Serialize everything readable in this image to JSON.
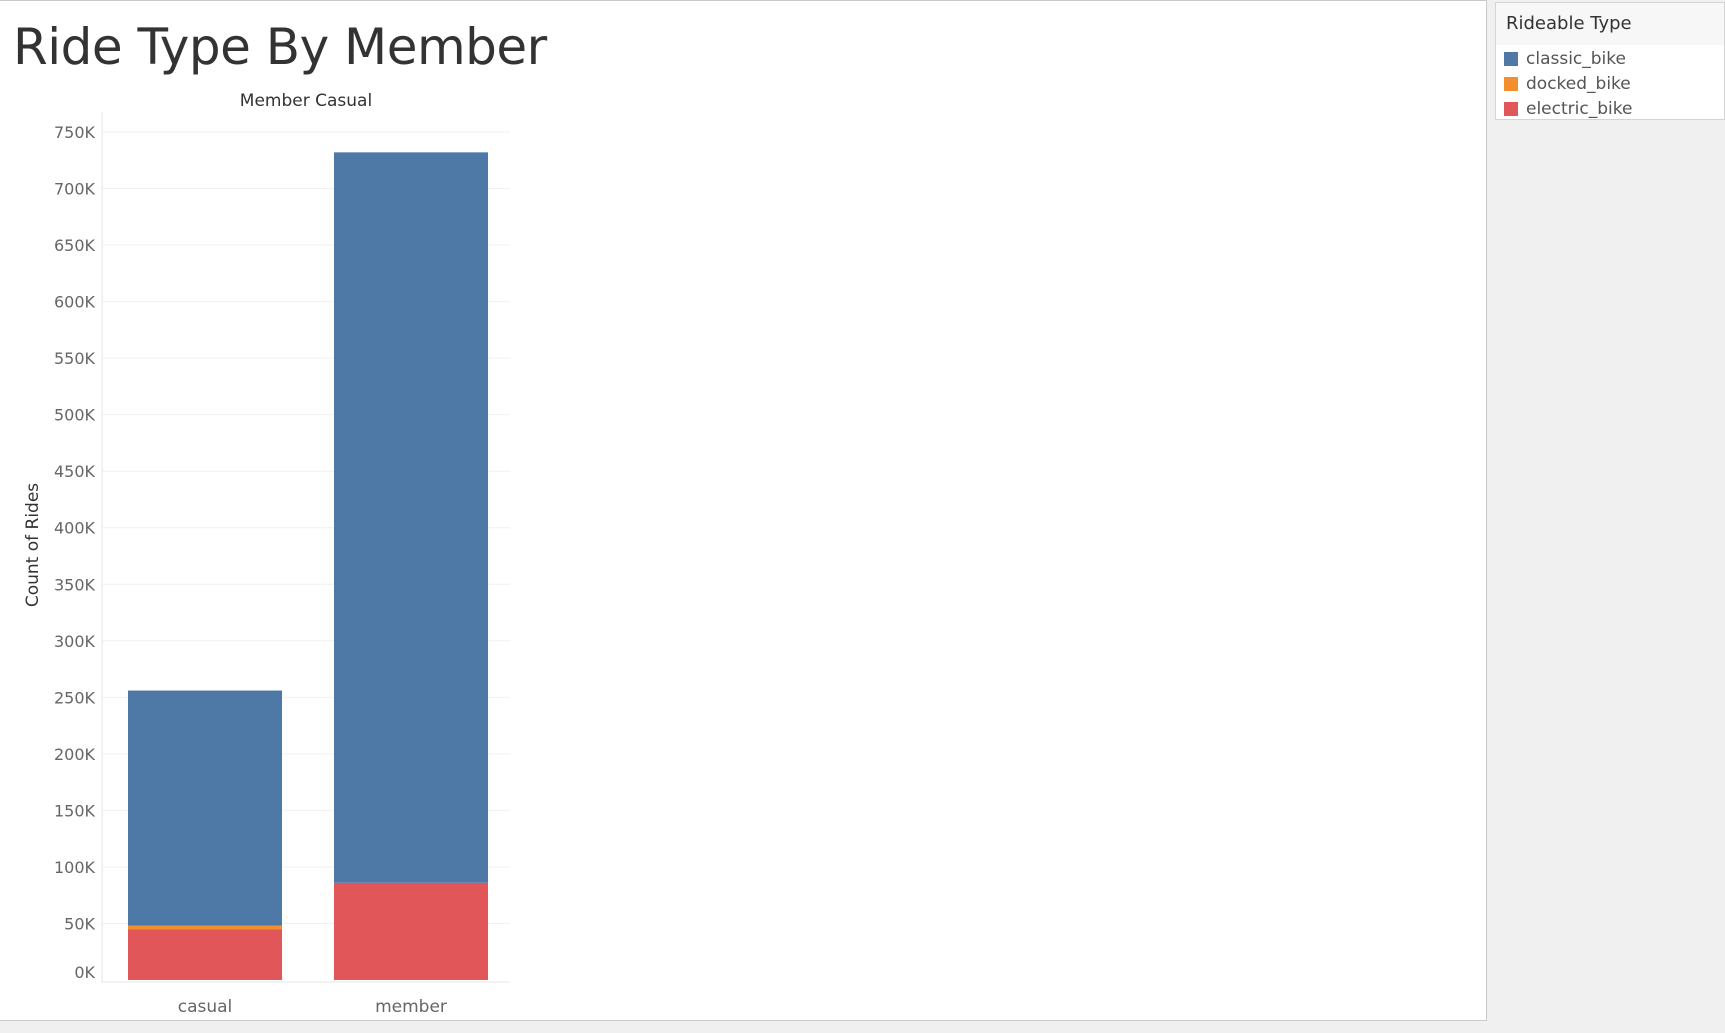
{
  "page": {
    "title": "Ride Type By Member"
  },
  "legend": {
    "title": "Rideable Type",
    "items": [
      {
        "label": "classic_bike",
        "color": "#4e79a7"
      },
      {
        "label": "docked_bike",
        "color": "#f28e2b"
      },
      {
        "label": "electric_bike",
        "color": "#e15759"
      }
    ]
  },
  "chart_data": {
    "type": "bar",
    "stacked": true,
    "title": "Member Casual",
    "xlabel": "",
    "ylabel": "Count of Rides",
    "categories": [
      "casual",
      "member"
    ],
    "ylim": [
      0,
      750000
    ],
    "yticks": [
      0,
      50000,
      100000,
      150000,
      200000,
      250000,
      300000,
      350000,
      400000,
      450000,
      500000,
      550000,
      600000,
      650000,
      700000,
      750000
    ],
    "ytick_labels": [
      "0K",
      "50K",
      "100K",
      "150K",
      "200K",
      "250K",
      "300K",
      "350K",
      "400K",
      "450K",
      "500K",
      "550K",
      "600K",
      "650K",
      "700K",
      "750K"
    ],
    "grid": true,
    "legend_position": "top-right",
    "series": [
      {
        "name": "electric_bike",
        "color": "#e15759",
        "values": [
          45000,
          86000
        ]
      },
      {
        "name": "docked_bike",
        "color": "#f28e2b",
        "values": [
          3000,
          0
        ]
      },
      {
        "name": "classic_bike",
        "color": "#4e79a7",
        "values": [
          208000,
          646000
        ]
      }
    ]
  }
}
